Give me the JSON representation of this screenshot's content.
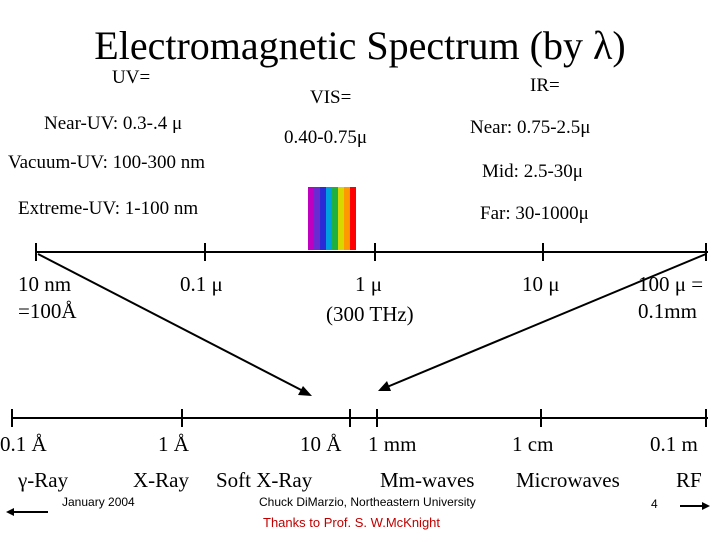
{
  "title": "Electromagnetic Spectrum (by λ)",
  "labels": {
    "uv_header": "UV=",
    "near_uv": "Near-UV:  0.3-.4  μ",
    "vacuum_uv": "Vacuum-UV: 100-300 nm",
    "extreme_uv": "Extreme-UV:  1-100 nm",
    "vis_header": "VIS=",
    "vis_range": "0.40-0.75μ",
    "ir_header": "IR=",
    "near_ir": "Near:  0.75-2.5μ",
    "mid_ir": "Mid:  2.5-30μ",
    "far_ir": "Far: 30-1000μ"
  },
  "top_scale": {
    "t1a": "10 nm",
    "t1b": "=100Å",
    "t2": "0.1  μ",
    "t3a": "1 μ",
    "t3b": "(300 THz)",
    "t4": "10  μ",
    "t5a": "100 μ =",
    "t5b": "0.1mm"
  },
  "bottom_scale": {
    "t1": "0.1 Å",
    "t2": "1 Å",
    "t3": "10 Å",
    "t4": "1 mm",
    "t5": "1 cm",
    "t6": "0.1 m"
  },
  "bands": {
    "gamma": "γ-Ray",
    "xray": "X-Ray",
    "soft_xray": "Soft X-Ray",
    "mm_waves": "Mm-waves",
    "microwaves": "Microwaves",
    "rf": "RF"
  },
  "footer": {
    "date": "January 2004",
    "author": "Chuck DiMarzio, Northeastern University",
    "thanks": "Thanks to Prof. S. W.McKnight",
    "page": "4"
  },
  "colors": {
    "visible_bands": [
      "#c000c0",
      "#6a2bd0",
      "#2a2ad6",
      "#00a0e0",
      "#20b040",
      "#d8d800",
      "#ff9900",
      "#ff0000"
    ],
    "thanks_text": "#c00000"
  }
}
